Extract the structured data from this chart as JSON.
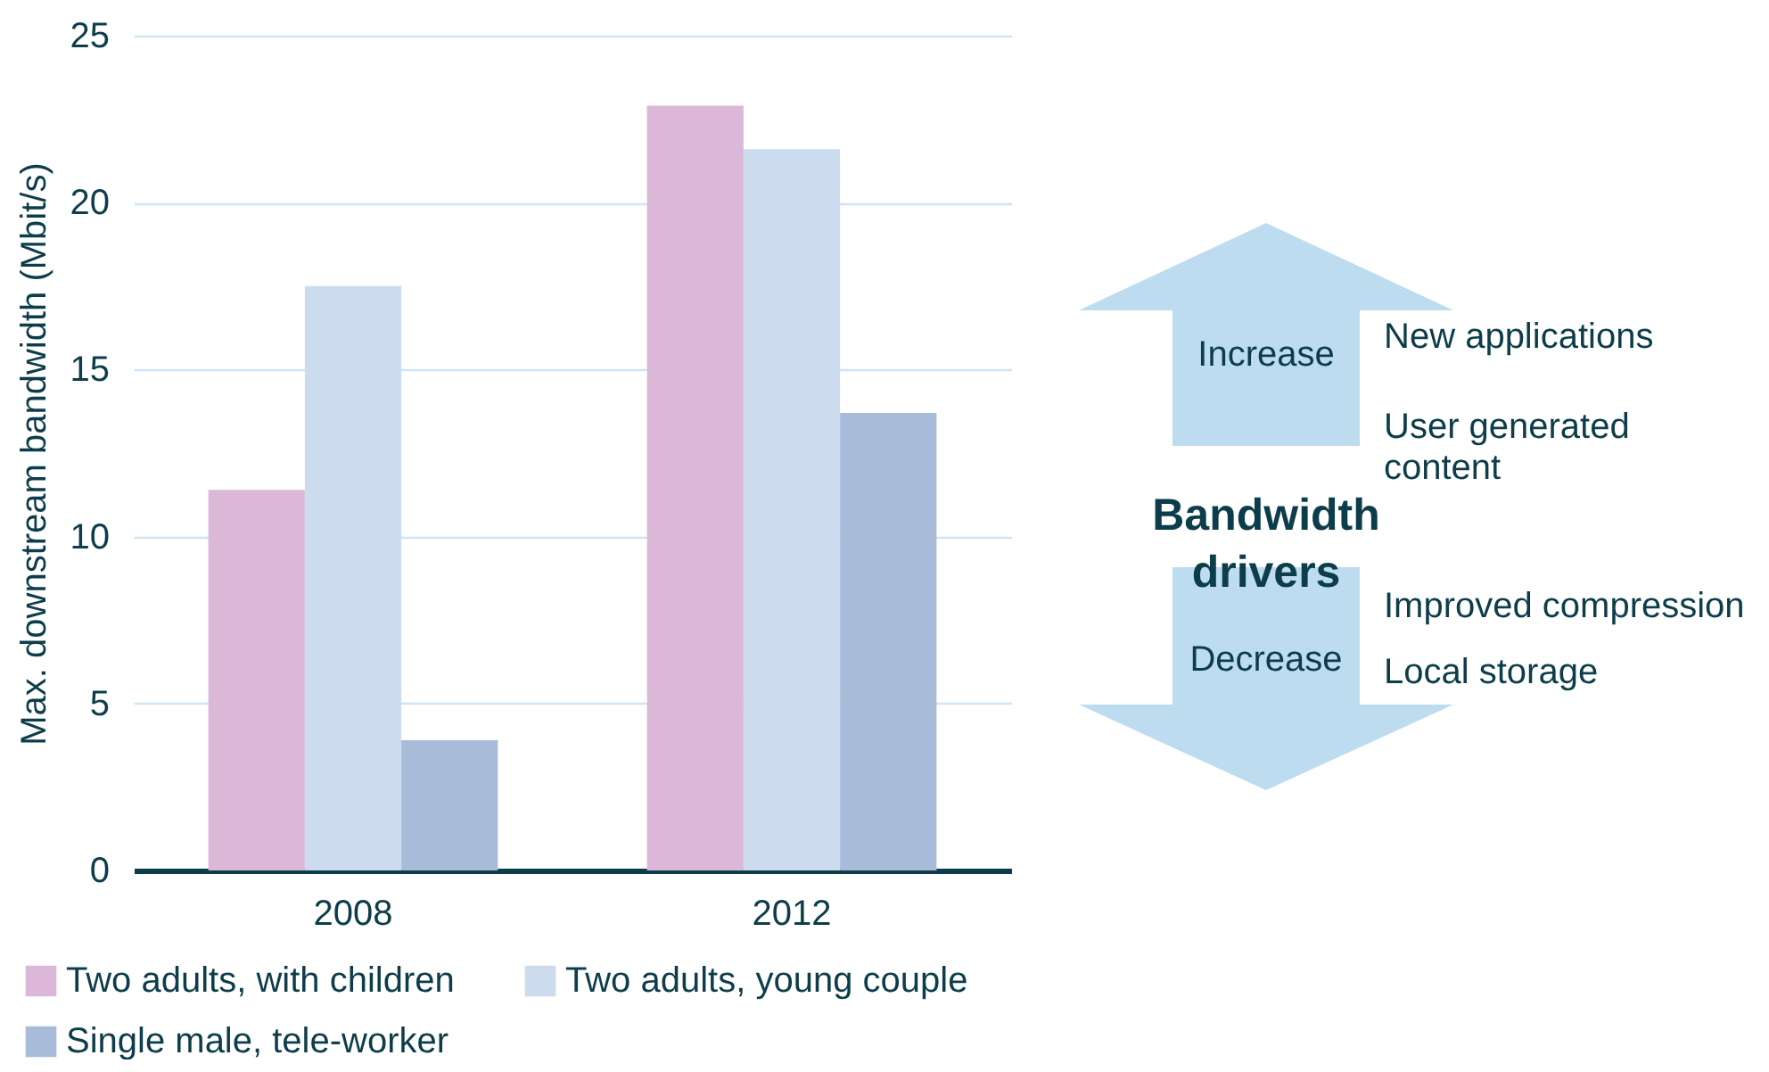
{
  "chart_data": {
    "type": "bar",
    "categories": [
      "2008",
      "2012"
    ],
    "series": [
      {
        "name": "Two adults, with children",
        "color": "#dbb8d7",
        "values": [
          11.4,
          22.9
        ]
      },
      {
        "name": "Two adults, young couple",
        "color": "#ccdcee",
        "values": [
          17.5,
          21.6
        ]
      },
      {
        "name": "Single male, tele-worker",
        "color": "#a8bcd9",
        "values": [
          3.9,
          13.7
        ]
      }
    ],
    "ylabel": "Max. downstream bandwidth (Mbit/s)",
    "ylim": [
      0,
      25
    ],
    "yticks": [
      0,
      5,
      10,
      15,
      20,
      25
    ],
    "grid": "y",
    "legend": "bottom",
    "annotations": [
      "Increase",
      "Bandwidth drivers",
      "Decrease",
      "New applications",
      "User generated content",
      "Improved compression",
      "Local storage"
    ]
  }
}
